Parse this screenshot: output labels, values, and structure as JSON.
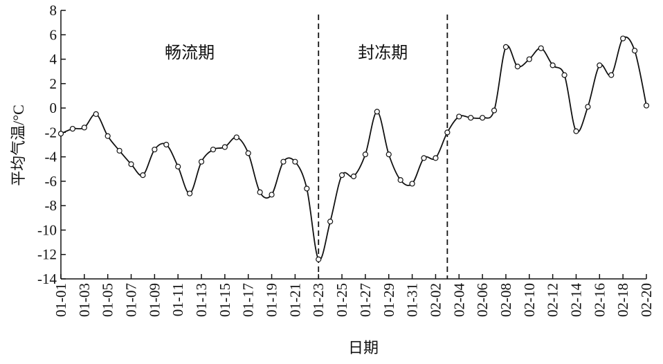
{
  "chart_data": {
    "type": "line",
    "x_label": "日期",
    "y_label": "平均气温/°C",
    "categories": [
      "01-01",
      null,
      "01-03",
      null,
      "01-05",
      null,
      "01-07",
      null,
      "01-09",
      null,
      "01-11",
      null,
      "01-13",
      null,
      "01-15",
      null,
      "01-17",
      null,
      "01-19",
      null,
      "01-21",
      null,
      "01-23",
      null,
      "01-25",
      null,
      "01-27",
      null,
      "01-29",
      null,
      "01-31",
      null,
      "02-02",
      null,
      "02-04",
      null,
      "02-06",
      null,
      "02-08",
      null,
      "02-10",
      null,
      "02-12",
      null,
      "02-14",
      null,
      "02-16",
      null,
      "02-18",
      null,
      "02-20"
    ],
    "series": [
      {
        "color": "#111111",
        "values": [
          -2.1,
          -1.7,
          -1.6,
          -0.5,
          -2.3,
          -3.5,
          -4.6,
          -5.5,
          -3.4,
          -3.0,
          -4.8,
          -7.0,
          -4.4,
          -3.4,
          -3.2,
          -2.4,
          -3.7,
          -6.9,
          -7.1,
          -4.4,
          -4.4,
          -6.6,
          -12.4,
          -9.3,
          -5.5,
          -5.6,
          -3.8,
          -0.3,
          -3.8,
          -5.9,
          -6.2,
          -4.1,
          -4.1,
          -2.0,
          -0.7,
          -0.8,
          -0.8,
          -0.2,
          5.0,
          3.4,
          4.0,
          4.9,
          3.5,
          2.7,
          -1.9,
          0.1,
          3.5,
          2.7,
          5.7,
          4.7,
          0.2
        ]
      }
    ],
    "ylim": [
      -14,
      8
    ],
    "yticks": [
      -14,
      -12,
      -10,
      -8,
      -6,
      -4,
      -2,
      0,
      2,
      4,
      6,
      8
    ],
    "vlines": [
      22,
      33
    ],
    "annotations": [
      "畅流期",
      "封冻期"
    ]
  }
}
